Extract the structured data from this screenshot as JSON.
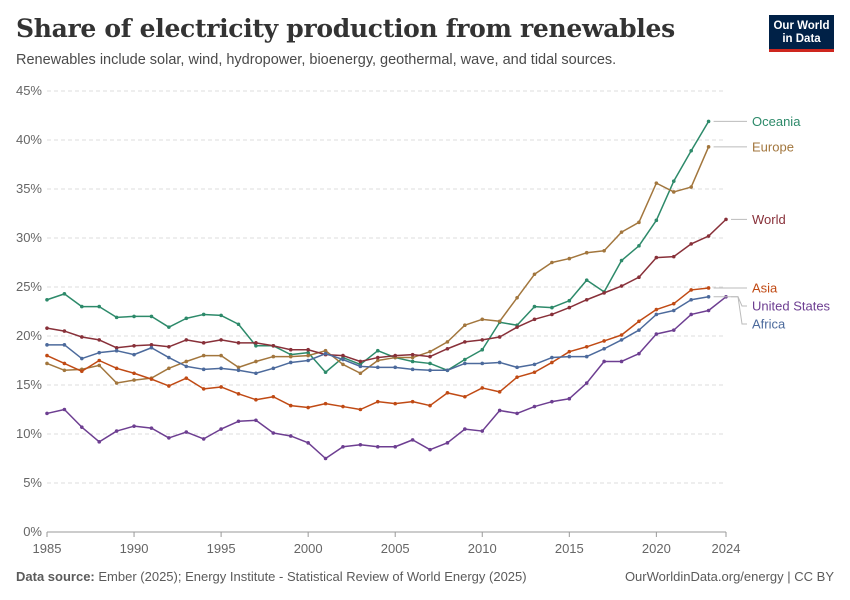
{
  "header": {
    "title": "Share of electricity production from renewables",
    "subtitle": "Renewables include solar, wind, hydropower, bioenergy, geothermal, wave, and tidal sources."
  },
  "logo": {
    "line1": "Our World",
    "line2": "in Data",
    "bg_color": "#002147",
    "accent_color": "#ce261e"
  },
  "footer": {
    "source_label": "Data source:",
    "source_text": "Ember (2025); Energy Institute - Statistical Review of World Energy (2025)",
    "credit": "OurWorldinData.org/energy | CC BY"
  },
  "chart_data": {
    "type": "line",
    "xlim": [
      1985,
      2024
    ],
    "ylim": [
      0,
      45
    ],
    "x_ticks": [
      1985,
      1990,
      1995,
      2000,
      2005,
      2010,
      2015,
      2020,
      2024
    ],
    "y_ticks": [
      0,
      5,
      10,
      15,
      20,
      25,
      30,
      35,
      40,
      45
    ],
    "y_tick_labels": [
      "0%",
      "5%",
      "10%",
      "15%",
      "20%",
      "25%",
      "30%",
      "35%",
      "40%",
      "45%"
    ],
    "grid": "horizontal dashed",
    "legend": "right, inline labels",
    "x": [
      1985,
      1986,
      1987,
      1988,
      1989,
      1990,
      1991,
      1992,
      1993,
      1994,
      1995,
      1996,
      1997,
      1998,
      1999,
      2000,
      2001,
      2002,
      2003,
      2004,
      2005,
      2006,
      2007,
      2008,
      2009,
      2010,
      2011,
      2012,
      2013,
      2014,
      2015,
      2016,
      2017,
      2018,
      2019,
      2020,
      2021,
      2022,
      2023,
      2024
    ],
    "series": [
      {
        "name": "Oceania",
        "color": "#2d8a6a",
        "values": [
          23.7,
          24.3,
          23.0,
          23.0,
          21.9,
          22.0,
          22.0,
          20.9,
          21.8,
          22.2,
          22.1,
          21.2,
          19.0,
          19.0,
          18.1,
          18.3,
          16.3,
          17.8,
          17.1,
          18.5,
          17.8,
          17.4,
          17.2,
          16.5,
          17.6,
          18.6,
          21.4,
          21.1,
          23.0,
          22.9,
          23.6,
          25.7,
          24.5,
          27.7,
          29.2,
          31.8,
          35.8,
          38.9,
          41.9,
          null
        ]
      },
      {
        "name": "Europe",
        "color": "#a2763d",
        "values": [
          17.2,
          16.5,
          16.6,
          17.0,
          15.2,
          15.5,
          15.7,
          16.7,
          17.4,
          18.0,
          18.0,
          16.8,
          17.4,
          17.9,
          17.9,
          18.0,
          18.5,
          17.1,
          16.2,
          17.5,
          17.8,
          17.8,
          18.4,
          19.4,
          21.1,
          21.7,
          21.5,
          23.9,
          26.3,
          27.5,
          27.9,
          28.5,
          28.7,
          30.6,
          31.6,
          35.6,
          34.7,
          35.2,
          39.3,
          null
        ]
      },
      {
        "name": "World",
        "color": "#883039",
        "values": [
          20.8,
          20.5,
          19.9,
          19.6,
          18.8,
          19.0,
          19.1,
          18.9,
          19.6,
          19.3,
          19.6,
          19.3,
          19.3,
          19.0,
          18.6,
          18.6,
          18.1,
          18.0,
          17.4,
          17.8,
          18.0,
          18.1,
          17.9,
          18.7,
          19.4,
          19.6,
          19.9,
          20.9,
          21.7,
          22.2,
          22.9,
          23.7,
          24.4,
          25.1,
          26.0,
          28.0,
          28.1,
          29.4,
          30.2,
          31.9
        ]
      },
      {
        "name": "Asia",
        "color": "#c04a14",
        "values": [
          18.0,
          17.2,
          16.4,
          17.5,
          16.7,
          16.2,
          15.6,
          14.9,
          15.7,
          14.6,
          14.8,
          14.1,
          13.5,
          13.8,
          12.9,
          12.7,
          13.1,
          12.8,
          12.5,
          13.3,
          13.1,
          13.3,
          12.9,
          14.2,
          13.8,
          14.7,
          14.3,
          15.8,
          16.3,
          17.3,
          18.4,
          18.9,
          19.5,
          20.1,
          21.5,
          22.7,
          23.3,
          24.7,
          24.9,
          null
        ]
      },
      {
        "name": "United States",
        "color": "#6d3e91",
        "values": [
          12.1,
          12.5,
          10.7,
          9.2,
          10.3,
          10.8,
          10.6,
          9.6,
          10.2,
          9.5,
          10.5,
          11.3,
          11.4,
          10.1,
          9.8,
          9.1,
          7.5,
          8.7,
          8.9,
          8.7,
          8.7,
          9.4,
          8.4,
          9.1,
          10.5,
          10.3,
          12.4,
          12.1,
          12.8,
          13.3,
          13.6,
          15.2,
          17.4,
          17.4,
          18.2,
          20.2,
          20.6,
          22.2,
          22.6,
          24.0
        ]
      },
      {
        "name": "Africa",
        "color": "#4c6a9c",
        "values": [
          19.1,
          19.1,
          17.7,
          18.3,
          18.5,
          18.1,
          18.8,
          17.8,
          16.9,
          16.6,
          16.7,
          16.5,
          16.2,
          16.7,
          17.3,
          17.5,
          18.2,
          17.6,
          16.9,
          16.8,
          16.8,
          16.6,
          16.5,
          16.5,
          17.2,
          17.2,
          17.3,
          16.8,
          17.1,
          17.8,
          17.9,
          17.9,
          18.7,
          19.6,
          20.6,
          22.2,
          22.6,
          23.7,
          24.0,
          null
        ]
      }
    ]
  }
}
